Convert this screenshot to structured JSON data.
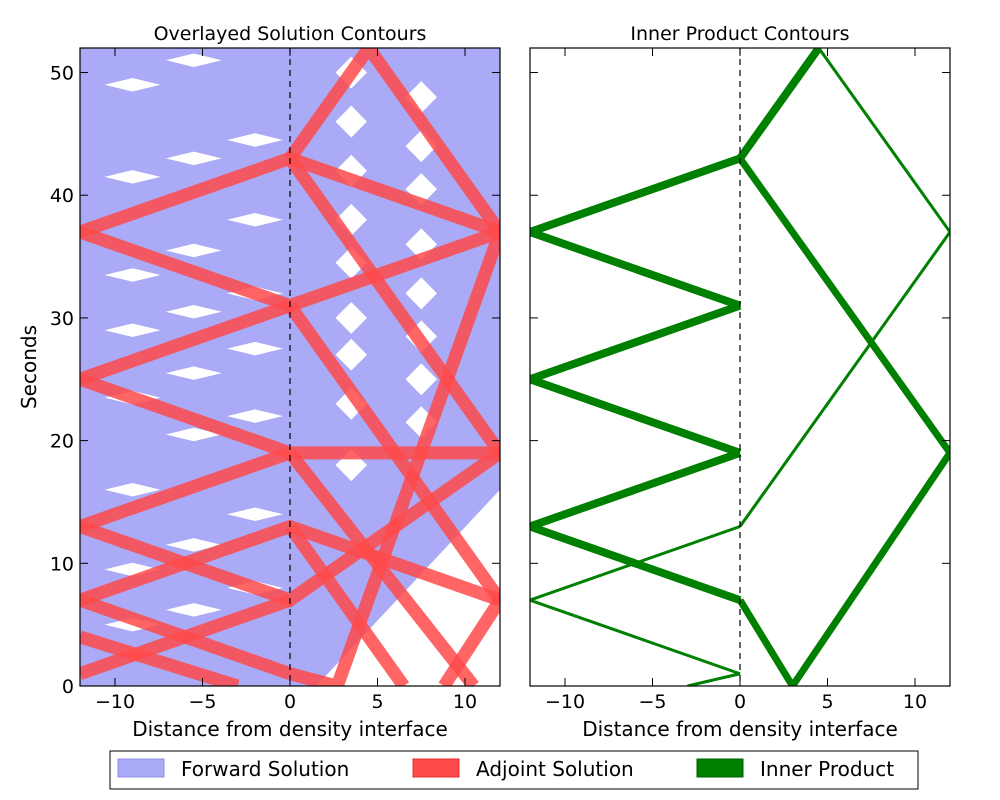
{
  "chart_data": [
    {
      "type": "area",
      "title": "Overlayed Solution Contours",
      "xlabel": "Distance from density interface",
      "ylabel": "Seconds",
      "xlim": [
        -12,
        12
      ],
      "ylim": [
        0,
        52
      ],
      "xticks": [
        -10,
        -5,
        0,
        5,
        10
      ],
      "yticks": [
        0,
        10,
        20,
        30,
        40,
        50
      ],
      "xtick_labels": [
        "−10",
        "−5",
        "0",
        "5",
        "10"
      ],
      "ytick_labels": [
        "0",
        "10",
        "20",
        "30",
        "40",
        "50"
      ],
      "interface_line_x": 0,
      "series": [
        {
          "name": "Forward Solution",
          "color": "#aaaaf6",
          "patches": [
            {
              "region": "left",
              "t": [
                5.0,
                6.2,
                8.0,
                9.5,
                11.5,
                14.0,
                16.0,
                20.5,
                22.0,
                23.5,
                25.5,
                27.5,
                29.0,
                30.5,
                32.0,
                33.5,
                35.5,
                38.0,
                41.5,
                43.0,
                44.5,
                49.0,
                51.0
              ]
            },
            {
              "region": "right",
              "t": [
                18.0,
                21.5,
                23.0,
                25.0,
                27.0,
                28.5,
                30.0,
                32.0,
                34.5,
                36.0,
                38.0,
                40.5,
                42.0,
                44.0,
                46.0,
                48.0,
                50.0
              ]
            }
          ]
        },
        {
          "name": "Adjoint Solution",
          "color": "#ff4a4a",
          "paths": [
            [
              [
                -12,
                37
              ],
              [
                0,
                43
              ],
              [
                12,
                37
              ]
            ],
            [
              [
                -12,
                37
              ],
              [
                0,
                31
              ],
              [
                12,
                37
              ]
            ],
            [
              [
                -12,
                25
              ],
              [
                0,
                31
              ]
            ],
            [
              [
                -12,
                25
              ],
              [
                0,
                19
              ],
              [
                12,
                19
              ]
            ],
            [
              [
                -12,
                13
              ],
              [
                0,
                19
              ]
            ],
            [
              [
                -12,
                13
              ],
              [
                0,
                7
              ],
              [
                12,
                19
              ]
            ],
            [
              [
                -12,
                7
              ],
              [
                0,
                13
              ],
              [
                12,
                7
              ]
            ],
            [
              [
                -12,
                7
              ],
              [
                0,
                1
              ]
            ],
            [
              [
                -12,
                1
              ],
              [
                0,
                7
              ]
            ],
            [
              [
                0,
                43
              ],
              [
                4.5,
                52
              ],
              [
                12,
                37
              ]
            ],
            [
              [
                0,
                1
              ],
              [
                2.7,
                0
              ],
              [
                12,
                37
              ]
            ],
            [
              [
                0,
                43
              ],
              [
                12,
                19
              ]
            ],
            [
              [
                0,
                31
              ],
              [
                12,
                7
              ]
            ],
            [
              [
                0,
                19
              ],
              [
                10.5,
                0
              ]
            ],
            [
              [
                0,
                13
              ],
              [
                6.5,
                0
              ]
            ],
            [
              [
                12,
                7
              ],
              [
                8.8,
                0
              ]
            ],
            [
              [
                -3,
                0
              ],
              [
                -12,
                4
              ]
            ]
          ]
        }
      ]
    },
    {
      "type": "line",
      "title": "Inner Product Contours",
      "xlabel": "Distance from density interface",
      "ylabel": "",
      "xlim": [
        -12,
        12
      ],
      "ylim": [
        0,
        52
      ],
      "xticks": [
        -10,
        -5,
        0,
        5,
        10
      ],
      "yticks": [
        0,
        10,
        20,
        30,
        40,
        50
      ],
      "xtick_labels": [
        "−10",
        "−5",
        "0",
        "5",
        "10"
      ],
      "interface_line_x": 0,
      "series": [
        {
          "name": "Inner Product",
          "color": "#008000",
          "paths": [
            [
              [
                -12,
                37
              ],
              [
                0,
                43
              ],
              [
                4.5,
                52
              ]
            ],
            [
              [
                -12,
                37
              ],
              [
                0,
                31
              ]
            ],
            [
              [
                -12,
                25
              ],
              [
                0,
                31
              ]
            ],
            [
              [
                -12,
                25
              ],
              [
                0,
                19
              ]
            ],
            [
              [
                -12,
                13
              ],
              [
                0,
                19
              ]
            ],
            [
              [
                -12,
                13
              ],
              [
                0,
                7
              ]
            ],
            [
              [
                -12,
                7
              ],
              [
                0,
                13
              ]
            ],
            [
              [
                -12,
                7
              ],
              [
                0,
                1
              ]
            ],
            [
              [
                0,
                1
              ],
              [
                -3,
                0
              ]
            ],
            [
              [
                0,
                43
              ],
              [
                12,
                19
              ]
            ],
            [
              [
                0,
                7
              ],
              [
                3,
                0
              ]
            ],
            [
              [
                3,
                0
              ],
              [
                12,
                19
              ]
            ],
            [
              [
                4.5,
                52
              ],
              [
                12,
                37
              ]
            ],
            [
              [
                12,
                37
              ],
              [
                0,
                13
              ]
            ]
          ]
        }
      ]
    }
  ],
  "legend": {
    "items": [
      {
        "label": "Forward Solution",
        "color": "#aaaaf6",
        "edge": "#9090e6"
      },
      {
        "label": "Adjoint Solution",
        "color": "#ff4a4a",
        "edge": "#e03030"
      },
      {
        "label": "Inner Product",
        "color": "#008000",
        "edge": "#006000"
      }
    ],
    "placement": "bottom-center"
  }
}
